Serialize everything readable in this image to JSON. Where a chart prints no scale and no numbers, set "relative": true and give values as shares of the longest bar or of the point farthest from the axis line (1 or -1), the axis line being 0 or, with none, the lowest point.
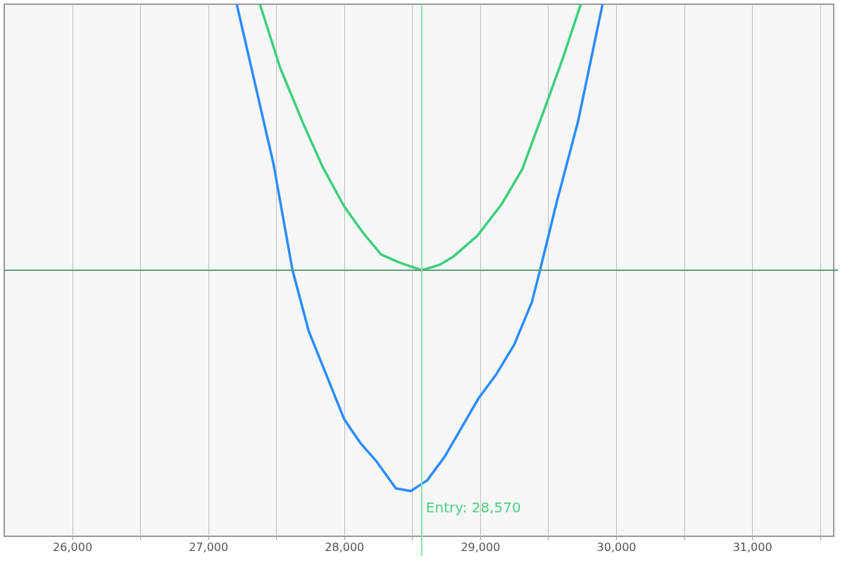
{
  "chart_data": {
    "type": "line",
    "relative": true,
    "grid": "x",
    "xlim": [
      25500,
      31600
    ],
    "xticks": [
      {
        "value": 26000,
        "label": "26,000"
      },
      {
        "value": 26500,
        "label": null
      },
      {
        "value": 27000,
        "label": "27,000"
      },
      {
        "value": 27500,
        "label": null
      },
      {
        "value": 28000,
        "label": "28,000"
      },
      {
        "value": 28500,
        "label": null
      },
      {
        "value": 29000,
        "label": "29,000"
      },
      {
        "value": 29500,
        "label": null
      },
      {
        "value": 30000,
        "label": "30,000"
      },
      {
        "value": 30500,
        "label": null
      },
      {
        "value": 31000,
        "label": "31,000"
      },
      {
        "value": 31500,
        "label": null
      }
    ],
    "series": [
      {
        "color": "#2a8cff",
        "x": [
          27210,
          27480,
          27620,
          27740,
          28000,
          28120,
          28240,
          28380,
          28490,
          28610,
          28740,
          28990,
          29120,
          29250,
          29380,
          29440,
          29560,
          29720,
          29900
        ],
        "values": [
          1.0,
          0.4,
          0,
          -0.23,
          -0.56,
          -0.65,
          -0.72,
          -0.82,
          -0.83,
          -0.79,
          -0.7,
          -0.48,
          -0.39,
          -0.28,
          -0.12,
          0,
          0.25,
          0.56,
          1.0
        ]
      },
      {
        "color": "#3ecf7a",
        "x": [
          27380,
          27530,
          27700,
          27840,
          28000,
          28140,
          28270,
          28400,
          28570,
          28700,
          28800,
          28980,
          29160,
          29310,
          29490,
          29610,
          29740
        ],
        "values": [
          1.0,
          0.76,
          0.55,
          0.39,
          0.24,
          0.14,
          0.06,
          0.03,
          0,
          0.02,
          0.05,
          0.13,
          0.25,
          0.38,
          0.63,
          0.8,
          1.0
        ]
      }
    ],
    "ref_lines": [
      {
        "axis": "y",
        "value": 0,
        "color": "#5f9f7f"
      },
      {
        "axis": "x",
        "value": 28570,
        "label": "Entry: 28,570",
        "color": "#8fdfaa"
      }
    ]
  }
}
